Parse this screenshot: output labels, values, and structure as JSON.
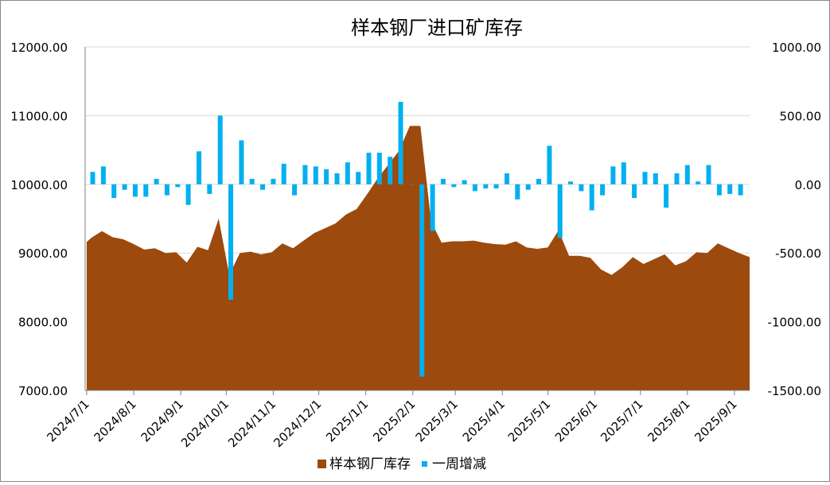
{
  "chart_data": {
    "type": "area+bar",
    "title": "样本钢厂进口矿库存",
    "legend": {
      "placement": "bottom",
      "items": [
        {
          "label": "样本钢厂库存",
          "color": "#9C4A0E",
          "kind": "area"
        },
        {
          "label": "一周增减",
          "color": "#00B0F0",
          "kind": "bar"
        }
      ]
    },
    "y_left": {
      "min": 7000,
      "max": 12000,
      "step": 1000,
      "ticks": [
        "7000.00",
        "8000.00",
        "9000.00",
        "10000.00",
        "11000.00",
        "12000.00"
      ]
    },
    "y_right": {
      "min": -1500,
      "max": 1000,
      "step": 500,
      "ticks": [
        "-1500.00",
        "-1000.00",
        "-500.00",
        "0.00",
        "500.00",
        "1000.00"
      ]
    },
    "x_ticks": [
      {
        "date": "2024-07-01",
        "label": "2024/7/1"
      },
      {
        "date": "2024-08-01",
        "label": "2024/8/1"
      },
      {
        "date": "2024-09-01",
        "label": "2024/9/1"
      },
      {
        "date": "2024-10-01",
        "label": "2024/10/1"
      },
      {
        "date": "2024-11-01",
        "label": "2024/11/1"
      },
      {
        "date": "2024-12-01",
        "label": "2024/12/1"
      },
      {
        "date": "2025-01-01",
        "label": "2025/1/1"
      },
      {
        "date": "2025-02-01",
        "label": "2025/2/1"
      },
      {
        "date": "2025-03-01",
        "label": "2025/3/1"
      },
      {
        "date": "2025-04-01",
        "label": "2025/4/1"
      },
      {
        "date": "2025-05-01",
        "label": "2025/5/1"
      },
      {
        "date": "2025-06-01",
        "label": "2025/6/1"
      },
      {
        "date": "2025-07-01",
        "label": "2025/7/1"
      },
      {
        "date": "2025-08-01",
        "label": "2025/8/1"
      },
      {
        "date": "2025-09-01",
        "label": "2025/9/1"
      }
    ],
    "x_range": [
      "2024-06-30",
      "2025-09-11"
    ],
    "series": [
      {
        "name": "样本钢厂库存",
        "type": "area",
        "axis": "left",
        "color": "#9C4A0E",
        "points": [
          [
            "2024-07-01",
            9160
          ],
          [
            "2024-07-04",
            9220
          ],
          [
            "2024-07-11",
            9320
          ],
          [
            "2024-07-18",
            9230
          ],
          [
            "2024-07-25",
            9200
          ],
          [
            "2024-08-01",
            9130
          ],
          [
            "2024-08-08",
            9050
          ],
          [
            "2024-08-15",
            9070
          ],
          [
            "2024-08-22",
            9000
          ],
          [
            "2024-08-29",
            9010
          ],
          [
            "2024-09-05",
            8860
          ],
          [
            "2024-09-12",
            9090
          ],
          [
            "2024-09-19",
            9040
          ],
          [
            "2024-09-26",
            9500
          ],
          [
            "2024-10-03",
            8680
          ],
          [
            "2024-10-10",
            9000
          ],
          [
            "2024-10-17",
            9020
          ],
          [
            "2024-10-24",
            8980
          ],
          [
            "2024-10-31",
            9010
          ],
          [
            "2024-11-07",
            9140
          ],
          [
            "2024-11-14",
            9070
          ],
          [
            "2024-11-21",
            9180
          ],
          [
            "2024-11-28",
            9290
          ],
          [
            "2024-12-05",
            9360
          ],
          [
            "2024-12-12",
            9430
          ],
          [
            "2024-12-19",
            9560
          ],
          [
            "2024-12-26",
            9640
          ],
          [
            "2025-01-02",
            9860
          ],
          [
            "2025-01-09",
            10090
          ],
          [
            "2025-01-16",
            10290
          ],
          [
            "2025-01-23",
            10490
          ],
          [
            "2025-01-30",
            10850
          ],
          [
            "2025-02-06",
            10850
          ],
          [
            "2025-02-13",
            9460
          ],
          [
            "2025-02-20",
            9150
          ],
          [
            "2025-02-27",
            9170
          ],
          [
            "2025-03-06",
            9170
          ],
          [
            "2025-03-13",
            9180
          ],
          [
            "2025-03-20",
            9150
          ],
          [
            "2025-03-27",
            9130
          ],
          [
            "2025-04-03",
            9120
          ],
          [
            "2025-04-10",
            9170
          ],
          [
            "2025-04-17",
            9080
          ],
          [
            "2025-04-24",
            9060
          ],
          [
            "2025-05-01",
            9080
          ],
          [
            "2025-05-08",
            9330
          ],
          [
            "2025-05-15",
            8960
          ],
          [
            "2025-05-22",
            8960
          ],
          [
            "2025-05-29",
            8930
          ],
          [
            "2025-06-05",
            8760
          ],
          [
            "2025-06-12",
            8680
          ],
          [
            "2025-06-19",
            8790
          ],
          [
            "2025-06-26",
            8940
          ],
          [
            "2025-07-03",
            8840
          ],
          [
            "2025-07-10",
            8910
          ],
          [
            "2025-07-17",
            8980
          ],
          [
            "2025-07-24",
            8820
          ],
          [
            "2025-07-31",
            8880
          ],
          [
            "2025-08-07",
            9010
          ],
          [
            "2025-08-14",
            9000
          ],
          [
            "2025-08-21",
            9140
          ],
          [
            "2025-08-28",
            9070
          ],
          [
            "2025-09-04",
            9000
          ],
          [
            "2025-09-11",
            8940
          ]
        ]
      },
      {
        "name": "一周增减",
        "type": "bar",
        "axis": "right",
        "color": "#00B0F0",
        "points": [
          [
            "2024-07-05",
            90
          ],
          [
            "2024-07-12",
            130
          ],
          [
            "2024-07-19",
            -100
          ],
          [
            "2024-07-26",
            -40
          ],
          [
            "2024-08-02",
            -90
          ],
          [
            "2024-08-09",
            -90
          ],
          [
            "2024-08-16",
            40
          ],
          [
            "2024-08-23",
            -80
          ],
          [
            "2024-08-30",
            -20
          ],
          [
            "2024-09-06",
            -150
          ],
          [
            "2024-09-13",
            240
          ],
          [
            "2024-09-20",
            -70
          ],
          [
            "2024-09-27",
            500
          ],
          [
            "2024-10-04",
            -840
          ],
          [
            "2024-10-11",
            320
          ],
          [
            "2024-10-18",
            40
          ],
          [
            "2024-10-25",
            -40
          ],
          [
            "2024-11-01",
            40
          ],
          [
            "2024-11-08",
            150
          ],
          [
            "2024-11-15",
            -80
          ],
          [
            "2024-11-22",
            140
          ],
          [
            "2024-11-29",
            130
          ],
          [
            "2024-12-06",
            110
          ],
          [
            "2024-12-13",
            80
          ],
          [
            "2024-12-20",
            160
          ],
          [
            "2024-12-27",
            90
          ],
          [
            "2025-01-03",
            230
          ],
          [
            "2025-01-10",
            230
          ],
          [
            "2025-01-17",
            200
          ],
          [
            "2025-01-24",
            600
          ],
          [
            "2025-01-31",
            0
          ],
          [
            "2025-02-07",
            -1400
          ],
          [
            "2025-02-14",
            -340
          ],
          [
            "2025-02-21",
            40
          ],
          [
            "2025-02-28",
            -20
          ],
          [
            "2025-03-07",
            30
          ],
          [
            "2025-03-14",
            -50
          ],
          [
            "2025-03-21",
            -30
          ],
          [
            "2025-03-28",
            -30
          ],
          [
            "2025-04-04",
            80
          ],
          [
            "2025-04-11",
            -110
          ],
          [
            "2025-04-18",
            -40
          ],
          [
            "2025-04-25",
            40
          ],
          [
            "2025-05-02",
            280
          ],
          [
            "2025-05-09",
            -390
          ],
          [
            "2025-05-16",
            20
          ],
          [
            "2025-05-23",
            -50
          ],
          [
            "2025-05-30",
            -190
          ],
          [
            "2025-06-06",
            -80
          ],
          [
            "2025-06-13",
            130
          ],
          [
            "2025-06-20",
            160
          ],
          [
            "2025-06-27",
            -100
          ],
          [
            "2025-07-04",
            90
          ],
          [
            "2025-07-11",
            80
          ],
          [
            "2025-07-18",
            -170
          ],
          [
            "2025-07-25",
            80
          ],
          [
            "2025-08-01",
            140
          ],
          [
            "2025-08-08",
            20
          ],
          [
            "2025-08-15",
            140
          ],
          [
            "2025-08-22",
            -80
          ],
          [
            "2025-08-29",
            -70
          ],
          [
            "2025-09-05",
            -80
          ]
        ]
      }
    ]
  }
}
